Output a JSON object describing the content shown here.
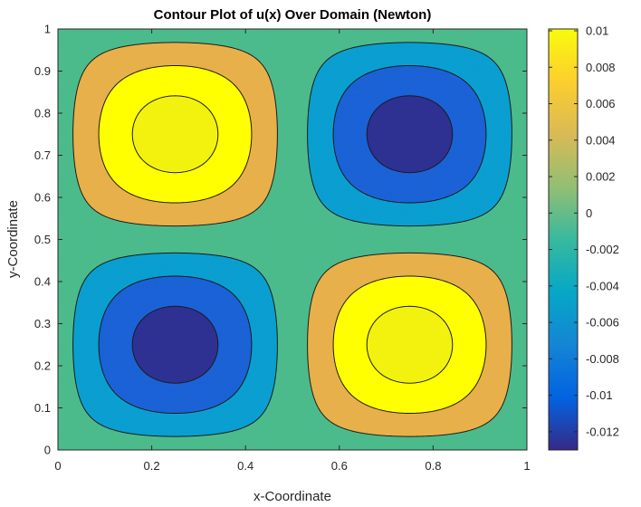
{
  "chart_data": {
    "type": "contour",
    "title": "Contour Plot of u(x) Over Domain (Newton)",
    "xlabel": "x-Coordinate",
    "ylabel": "y-Coordinate",
    "xlim": [
      0,
      1
    ],
    "ylim": [
      0,
      1
    ],
    "xticks": [
      0,
      0.2,
      0.4,
      0.6,
      0.8,
      1
    ],
    "xtick_labels": [
      "0",
      "0.2",
      "0.4",
      "0.6",
      "0.8",
      "1"
    ],
    "yticks": [
      0,
      0.1,
      0.2,
      0.3,
      0.4,
      0.5,
      0.6,
      0.7,
      0.8,
      0.9,
      1
    ],
    "ytick_labels": [
      "0",
      "0.1",
      "0.2",
      "0.3",
      "0.4",
      "0.5",
      "0.6",
      "0.7",
      "0.8",
      "0.9",
      "1"
    ],
    "function_amplitude": 0.0125,
    "colorbar": {
      "range": [
        -0.013,
        0.0101
      ],
      "ticks": [
        -0.012,
        -0.01,
        -0.008,
        -0.006,
        -0.004,
        -0.002,
        0,
        0.002,
        0.004,
        0.006,
        0.008,
        0.01
      ],
      "tick_labels": [
        "-0.012",
        "-0.01",
        "-0.008",
        "-0.006",
        "-0.004",
        "-0.002",
        "0",
        "0.002",
        "0.004",
        "0.006",
        "0.008",
        "0.01"
      ],
      "colormap": "parula",
      "colormap_stops": [
        "#352a87",
        "#0363e1",
        "#1485d4",
        "#06a7c6",
        "#38b99e",
        "#92bf73",
        "#d9ba56",
        "#fcce2e",
        "#f9fb0e"
      ]
    },
    "contour_levels": [
      -0.0105,
      -0.0065,
      -0.0025,
      0.0025,
      0.0065,
      0.0105
    ],
    "level_fills": [
      "#2e3191",
      "#1a62d6",
      "#0a9fd0",
      "#4cbb8c",
      "#e8b04a",
      "#ffff00",
      "#f2f20f"
    ]
  }
}
